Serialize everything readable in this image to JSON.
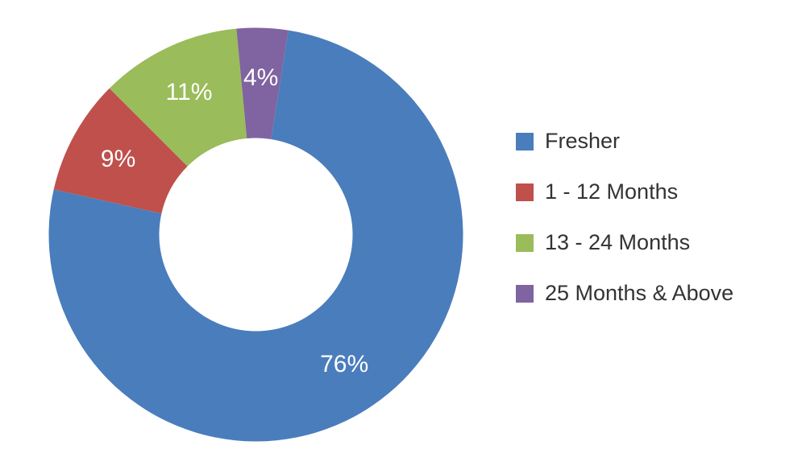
{
  "chart": {
    "type": "donut",
    "size": 515,
    "outer_radius": 257,
    "inner_radius": 120,
    "start_angle_deg": 9,
    "direction": "clockwise",
    "background_color": "#ffffff",
    "label_fontsize": 30,
    "label_color": "#ffffff",
    "label_radius": 195,
    "slices": [
      {
        "name": "Fresher",
        "value": 76,
        "label": "76%",
        "color": "#4a7dbc"
      },
      {
        "name": "1 - 12 Months",
        "value": 9,
        "label": "9%",
        "color": "#bf504c"
      },
      {
        "name": "13 - 24 Months",
        "value": 11,
        "label": "11%",
        "color": "#9abc5a"
      },
      {
        "name": "25 Months & Above",
        "value": 4,
        "label": "4%",
        "color": "#8063a1"
      }
    ]
  },
  "legend": {
    "fontsize": 27,
    "text_color": "#333333",
    "swatch_size": 22,
    "items": [
      {
        "label": "Fresher",
        "color": "#4a7dbc"
      },
      {
        "label": "1 - 12 Months",
        "color": "#bf504c"
      },
      {
        "label": "13 - 24 Months",
        "color": "#9abc5a"
      },
      {
        "label": "25 Months & Above",
        "color": "#8063a1"
      }
    ]
  }
}
